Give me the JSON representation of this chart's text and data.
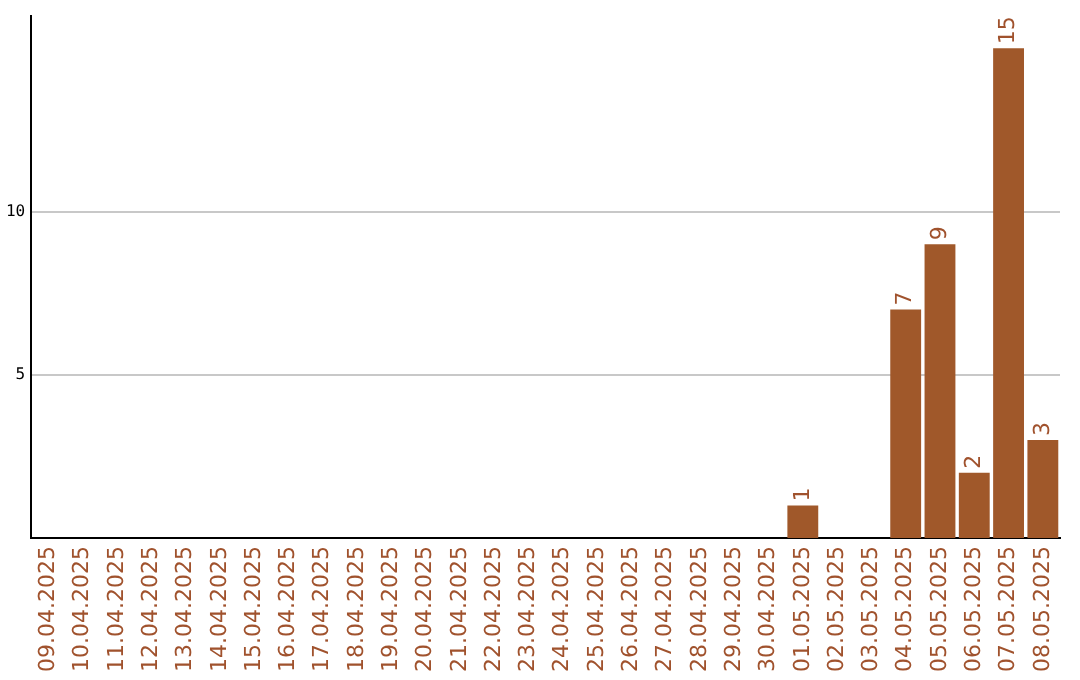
{
  "chart_data": {
    "type": "bar",
    "categories": [
      "09.04.2025",
      "10.04.2025",
      "11.04.2025",
      "12.04.2025",
      "13.04.2025",
      "14.04.2025",
      "15.04.2025",
      "16.04.2025",
      "17.04.2025",
      "18.04.2025",
      "19.04.2025",
      "20.04.2025",
      "21.04.2025",
      "22.04.2025",
      "23.04.2025",
      "24.04.2025",
      "25.04.2025",
      "26.04.2025",
      "27.04.2025",
      "28.04.2025",
      "29.04.2025",
      "30.04.2025",
      "01.05.2025",
      "02.05.2025",
      "03.05.2025",
      "04.05.2025",
      "05.05.2025",
      "06.05.2025",
      "07.05.2025",
      "08.05.2025"
    ],
    "values": [
      0,
      0,
      0,
      0,
      0,
      0,
      0,
      0,
      0,
      0,
      0,
      0,
      0,
      0,
      0,
      0,
      0,
      0,
      0,
      0,
      0,
      0,
      1,
      0,
      0,
      7,
      9,
      2,
      15,
      3
    ],
    "value_labels": [
      null,
      null,
      null,
      null,
      null,
      null,
      null,
      null,
      null,
      null,
      null,
      null,
      null,
      null,
      null,
      null,
      null,
      null,
      null,
      null,
      null,
      null,
      "1",
      null,
      null,
      "7",
      "9",
      "2",
      "15",
      "3"
    ],
    "color": "#a0582a",
    "ylim": [
      0,
      16
    ],
    "yticks": [
      5,
      10
    ],
    "grid": "y",
    "legend": false
  }
}
